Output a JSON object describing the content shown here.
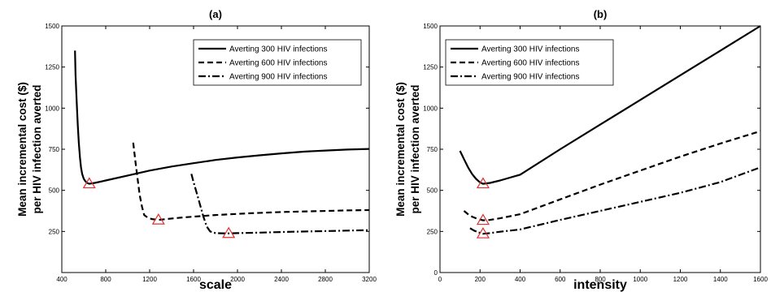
{
  "chart_data": [
    {
      "type": "line",
      "title": "(a)",
      "xlabel": "scale",
      "ylabel": "Mean incremental cost ($) per HIV infection averted",
      "xlim": [
        400,
        3200
      ],
      "ylim": [
        0,
        1500
      ],
      "xticks": [
        "400",
        "800",
        "1200",
        "1600",
        "2000",
        "2400",
        "2800",
        "3200"
      ],
      "yticks": [
        "250",
        "500",
        "750",
        "1000",
        "1250",
        "1500"
      ],
      "grid": false,
      "legend_position": "top-right",
      "series": [
        {
          "name": "Averting 300 HIV infections",
          "style": "solid",
          "x": [
            520,
            525,
            535,
            545,
            555,
            565,
            575,
            585,
            600,
            615,
            630,
            650,
            700,
            800,
            1000,
            1200,
            1400,
            1600,
            1800,
            2000,
            2200,
            2400,
            2600,
            2800,
            3000,
            3200
          ],
          "y": [
            1350,
            1200,
            1050,
            900,
            790,
            700,
            640,
            600,
            570,
            555,
            545,
            540,
            545,
            560,
            590,
            620,
            645,
            665,
            685,
            700,
            713,
            725,
            735,
            742,
            748,
            752
          ]
        },
        {
          "name": "Averting 600 HIV infections",
          "style": "dashed",
          "x": [
            1050,
            1070,
            1090,
            1110,
            1130,
            1150,
            1180,
            1220,
            1280,
            1350,
            1500,
            1800,
            2100,
            2400,
            2700,
            3000,
            3200
          ],
          "y": [
            790,
            680,
            570,
            470,
            400,
            350,
            335,
            325,
            320,
            325,
            335,
            350,
            360,
            368,
            373,
            378,
            380
          ]
        },
        {
          "name": "Averting 900 HIV infections",
          "style": "dashdot",
          "x": [
            1580,
            1600,
            1630,
            1660,
            1690,
            1720,
            1750,
            1800,
            1900,
            2000,
            2200,
            2500,
            2800,
            3000,
            3200
          ],
          "y": [
            600,
            550,
            480,
            410,
            340,
            280,
            250,
            240,
            238,
            240,
            243,
            248,
            252,
            255,
            258
          ]
        }
      ],
      "optimum_markers": [
        {
          "series": "Averting 300 HIV infections",
          "x": 650,
          "y": 540
        },
        {
          "series": "Averting 600 HIV infections",
          "x": 1280,
          "y": 320
        },
        {
          "series": "Averting 900 HIV infections",
          "x": 1920,
          "y": 238
        }
      ],
      "marker_color": "#e03030"
    },
    {
      "type": "line",
      "title": "(b)",
      "xlabel": "intensity",
      "ylabel": "Mean incremental cost ($) per HIV infection averted",
      "xlim": [
        0,
        1600
      ],
      "ylim": [
        0,
        1500
      ],
      "xticks": [
        "0",
        "200",
        "400",
        "600",
        "800",
        "1000",
        "1200",
        "1400",
        "1600"
      ],
      "yticks": [
        "0",
        "250",
        "500",
        "750",
        "1000",
        "1250",
        "1500"
      ],
      "grid": false,
      "legend_position": "top-left",
      "series": [
        {
          "name": "Averting 300 HIV infections",
          "style": "solid",
          "x": [
            100,
            120,
            140,
            160,
            180,
            200,
            215,
            250,
            300,
            400,
            600,
            800,
            1000,
            1200,
            1400,
            1600
          ],
          "y": [
            740,
            690,
            640,
            600,
            570,
            548,
            540,
            545,
            560,
            595,
            750,
            900,
            1050,
            1200,
            1350,
            1500
          ]
        },
        {
          "name": "Averting 600 HIV infections",
          "style": "dashed",
          "x": [
            120,
            140,
            160,
            180,
            200,
            215,
            250,
            300,
            400,
            600,
            800,
            1000,
            1200,
            1400,
            1600
          ],
          "y": [
            375,
            355,
            340,
            330,
            322,
            318,
            320,
            330,
            355,
            445,
            535,
            620,
            705,
            785,
            860
          ]
        },
        {
          "name": "Averting 900 HIV infections",
          "style": "dashdot",
          "x": [
            150,
            170,
            190,
            210,
            215,
            250,
            300,
            400,
            600,
            800,
            1000,
            1200,
            1400,
            1600
          ],
          "y": [
            270,
            255,
            245,
            238,
            236,
            240,
            248,
            262,
            320,
            375,
            430,
            485,
            550,
            640
          ]
        }
      ],
      "optimum_markers": [
        {
          "series": "Averting 300 HIV infections",
          "x": 215,
          "y": 540
        },
        {
          "series": "Averting 600 HIV infections",
          "x": 215,
          "y": 318
        },
        {
          "series": "Averting 900 HIV infections",
          "x": 215,
          "y": 236
        }
      ],
      "marker_color": "#e03030"
    }
  ]
}
